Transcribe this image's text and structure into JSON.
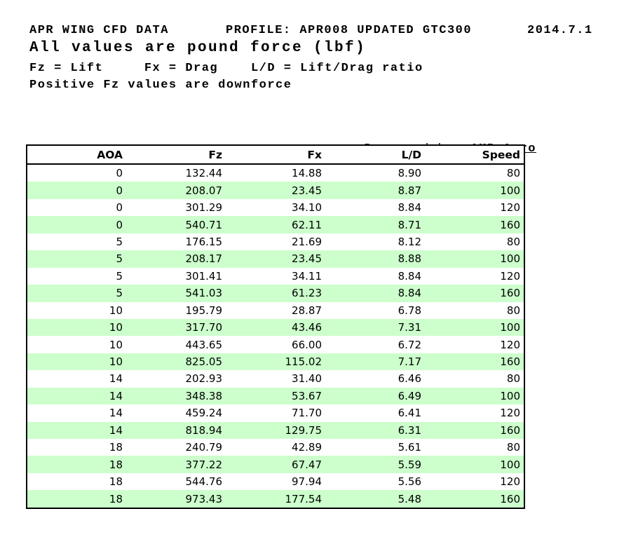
{
  "header": {
    "title": "APR WING CFD DATA",
    "profile": "PROFILE: APR008 UPDATED GTC300",
    "date": "2014.7.1",
    "subtitle": "All values are pound force (lbf)",
    "legend": "Fz = Lift     Fx = Drag    L/D = Lift/Drag ratio",
    "note": "Positive Fz values are downforce"
  },
  "prepared_by": {
    "label": "Prepared by: ",
    "value": "AMB Aero"
  },
  "table": {
    "columns": [
      "AOA",
      "Fz",
      "Fx",
      "L/D",
      "Speed"
    ],
    "rows": [
      [
        "0",
        "132.44",
        "14.88",
        "8.90",
        "80"
      ],
      [
        "0",
        "208.07",
        "23.45",
        "8.87",
        "100"
      ],
      [
        "0",
        "301.29",
        "34.10",
        "8.84",
        "120"
      ],
      [
        "0",
        "540.71",
        "62.11",
        "8.71",
        "160"
      ],
      [
        "5",
        "176.15",
        "21.69",
        "8.12",
        "80"
      ],
      [
        "5",
        "208.17",
        "23.45",
        "8.88",
        "100"
      ],
      [
        "5",
        "301.41",
        "34.11",
        "8.84",
        "120"
      ],
      [
        "5",
        "541.03",
        "61.23",
        "8.84",
        "160"
      ],
      [
        "10",
        "195.79",
        "28.87",
        "6.78",
        "80"
      ],
      [
        "10",
        "317.70",
        "43.46",
        "7.31",
        "100"
      ],
      [
        "10",
        "443.65",
        "66.00",
        "6.72",
        "120"
      ],
      [
        "10",
        "825.05",
        "115.02",
        "7.17",
        "160"
      ],
      [
        "14",
        "202.93",
        "31.40",
        "6.46",
        "80"
      ],
      [
        "14",
        "348.38",
        "53.67",
        "6.49",
        "100"
      ],
      [
        "14",
        "459.24",
        "71.70",
        "6.41",
        "120"
      ],
      [
        "14",
        "818.94",
        "129.75",
        "6.31",
        "160"
      ],
      [
        "18",
        "240.79",
        "42.89",
        "5.61",
        "80"
      ],
      [
        "18",
        "377.22",
        "67.47",
        "5.59",
        "100"
      ],
      [
        "18",
        "544.76",
        "97.94",
        "5.56",
        "120"
      ],
      [
        "18",
        "973.43",
        "177.54",
        "5.48",
        "160"
      ]
    ]
  },
  "colors": {
    "row_alternate": "#ccffcc",
    "border": "#000000",
    "text": "#000000",
    "background": "#ffffff"
  }
}
